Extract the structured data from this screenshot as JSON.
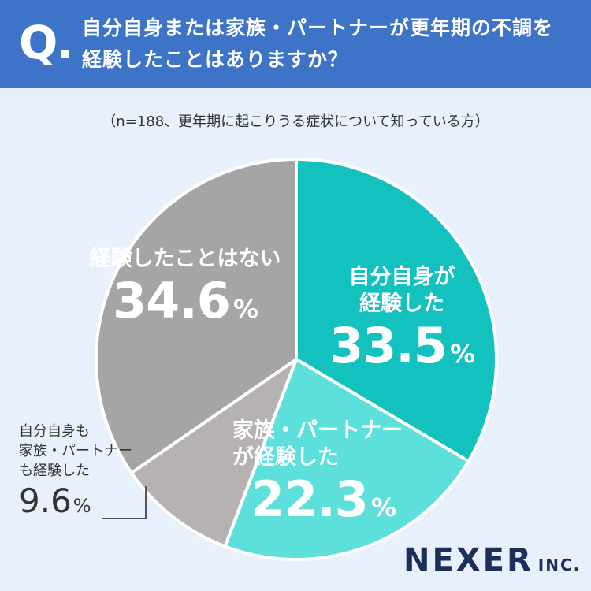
{
  "question": {
    "mark": "Q",
    "text_line1": "自分自身または家族・パートナーが更年期の不調を",
    "text_line2": "経験したことはありますか？"
  },
  "subtitle": "（n=188、更年期に起こりうる症状について知っている方）",
  "chart_data": {
    "type": "pie",
    "start_angle_deg": 0,
    "direction": "clockwise",
    "slices": [
      {
        "category_line1": "自分自身が",
        "category_line2": "経験した",
        "value": 33.5,
        "value_label": "33.5",
        "unit": "%",
        "color": "#13c2bf"
      },
      {
        "category_line1": "家族・パートナー",
        "category_line2": "が経験した",
        "value": 22.3,
        "value_label": "22.3",
        "unit": "%",
        "color": "#5ddfdc"
      },
      {
        "category_line1": "自分自身も",
        "category_line2": "家族・パートナー",
        "category_line3": "も経験した",
        "value": 9.6,
        "value_label": "9.6",
        "unit": "%",
        "color": "#b6b2b3"
      },
      {
        "category_line1": "経験したことはない",
        "value": 34.6,
        "value_label": "34.6",
        "unit": "%",
        "color": "#a5a5a5"
      }
    ]
  },
  "logo": {
    "main": "NEXER",
    "sub": "INC."
  },
  "colors": {
    "header": "#3d74c8",
    "background": "#e8f1fb",
    "logo": "#1b2f5a"
  }
}
